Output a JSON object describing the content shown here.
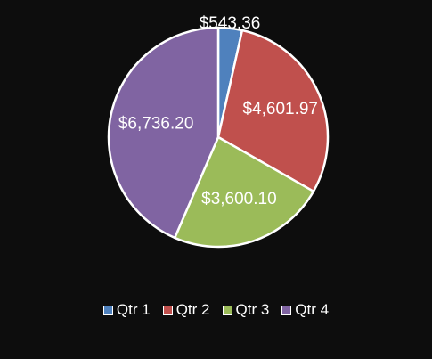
{
  "chart_data": {
    "type": "pie",
    "title": "",
    "categories": [
      "Qtr 1",
      "Qtr 2",
      "Qtr 3",
      "Qtr 4"
    ],
    "values": [
      543.36,
      4601.97,
      3600.1,
      6736.2
    ],
    "labels": [
      "$543.36",
      "$4,601.97",
      "$3,600.10",
      "$6,736.20"
    ],
    "colors": [
      "#4f81bd",
      "#c0504d",
      "#9bbb59",
      "#8064a2"
    ],
    "slice_border_color": "#ffffff",
    "legend_position": "bottom",
    "background": "#0d0d0d"
  },
  "legend": {
    "items": [
      {
        "label": "Qtr 1",
        "color": "#4f81bd"
      },
      {
        "label": "Qtr 2",
        "color": "#c0504d"
      },
      {
        "label": "Qtr 3",
        "color": "#9bbb59"
      },
      {
        "label": "Qtr 4",
        "color": "#8064a2"
      }
    ]
  }
}
